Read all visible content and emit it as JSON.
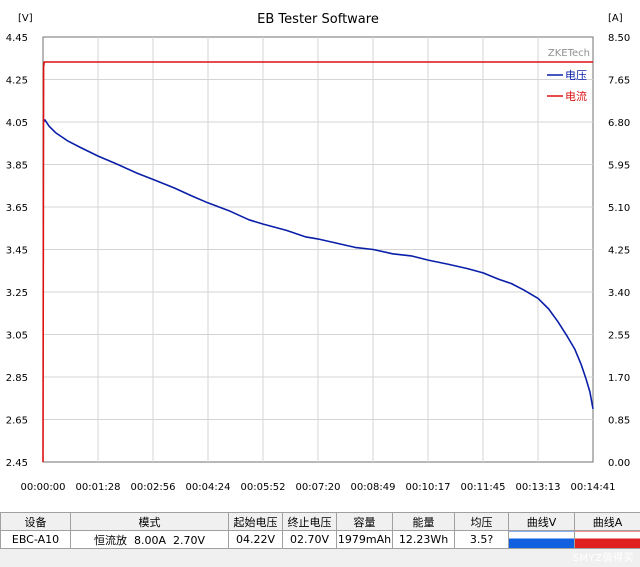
{
  "chart_data": {
    "type": "line",
    "title": "EB Tester Software",
    "brand": "ZKETech",
    "y_left_unit": "[V]",
    "y_right_unit": "[A]",
    "ylim_left": [
      2.45,
      4.45
    ],
    "ylim_right": [
      0.0,
      8.5
    ],
    "yticks_left": [
      "4.45",
      "4.25",
      "4.05",
      "3.85",
      "3.65",
      "3.45",
      "3.25",
      "3.05",
      "2.85",
      "2.65",
      "2.45"
    ],
    "yticks_right": [
      "8.50",
      "7.65",
      "6.80",
      "5.95",
      "5.10",
      "4.25",
      "3.40",
      "2.55",
      "1.70",
      "0.85",
      "0.00"
    ],
    "xticks": [
      "00:00:00",
      "00:01:28",
      "00:02:56",
      "00:04:24",
      "00:05:52",
      "00:07:20",
      "00:08:49",
      "00:10:17",
      "00:11:45",
      "00:13:13",
      "00:14:41"
    ],
    "xlim_seconds": [
      0,
      881
    ],
    "series": [
      {
        "name": "电压",
        "axis": "left",
        "color": "#0a1fa8",
        "x": [
          0,
          3,
          10,
          20,
          40,
          60,
          88,
          120,
          150,
          176,
          210,
          240,
          264,
          300,
          330,
          352,
          390,
          420,
          440,
          470,
          500,
          529,
          560,
          590,
          617,
          650,
          680,
          705,
          730,
          750,
          770,
          793,
          810,
          825,
          840,
          852,
          862,
          870,
          876,
          881
        ],
        "values": [
          4.05,
          4.06,
          4.03,
          4.0,
          3.96,
          3.93,
          3.89,
          3.85,
          3.81,
          3.78,
          3.74,
          3.7,
          3.67,
          3.63,
          3.59,
          3.57,
          3.54,
          3.51,
          3.5,
          3.48,
          3.46,
          3.45,
          3.43,
          3.42,
          3.4,
          3.38,
          3.36,
          3.34,
          3.31,
          3.29,
          3.26,
          3.22,
          3.17,
          3.11,
          3.04,
          2.98,
          2.91,
          2.84,
          2.78,
          2.7
        ]
      },
      {
        "name": "电流",
        "axis": "right",
        "color": "#dd1111",
        "x": [
          0,
          1,
          2,
          881
        ],
        "values": [
          0.0,
          7.9,
          8.0,
          8.0
        ]
      }
    ],
    "grid": true,
    "legend_position": "top-right"
  },
  "table": {
    "headers": [
      "设备",
      "模式",
      "起始电压",
      "终止电压",
      "容量",
      "能量",
      "均压",
      "曲线V",
      "曲线A"
    ],
    "row": [
      "EBC-A10",
      "恒流放  8.00A  2.70V",
      "04.22V",
      "02.70V",
      "1979mAh",
      "12.23Wh",
      "3.5?",
      "",
      ""
    ],
    "watermark": "SMYZ值得买"
  }
}
